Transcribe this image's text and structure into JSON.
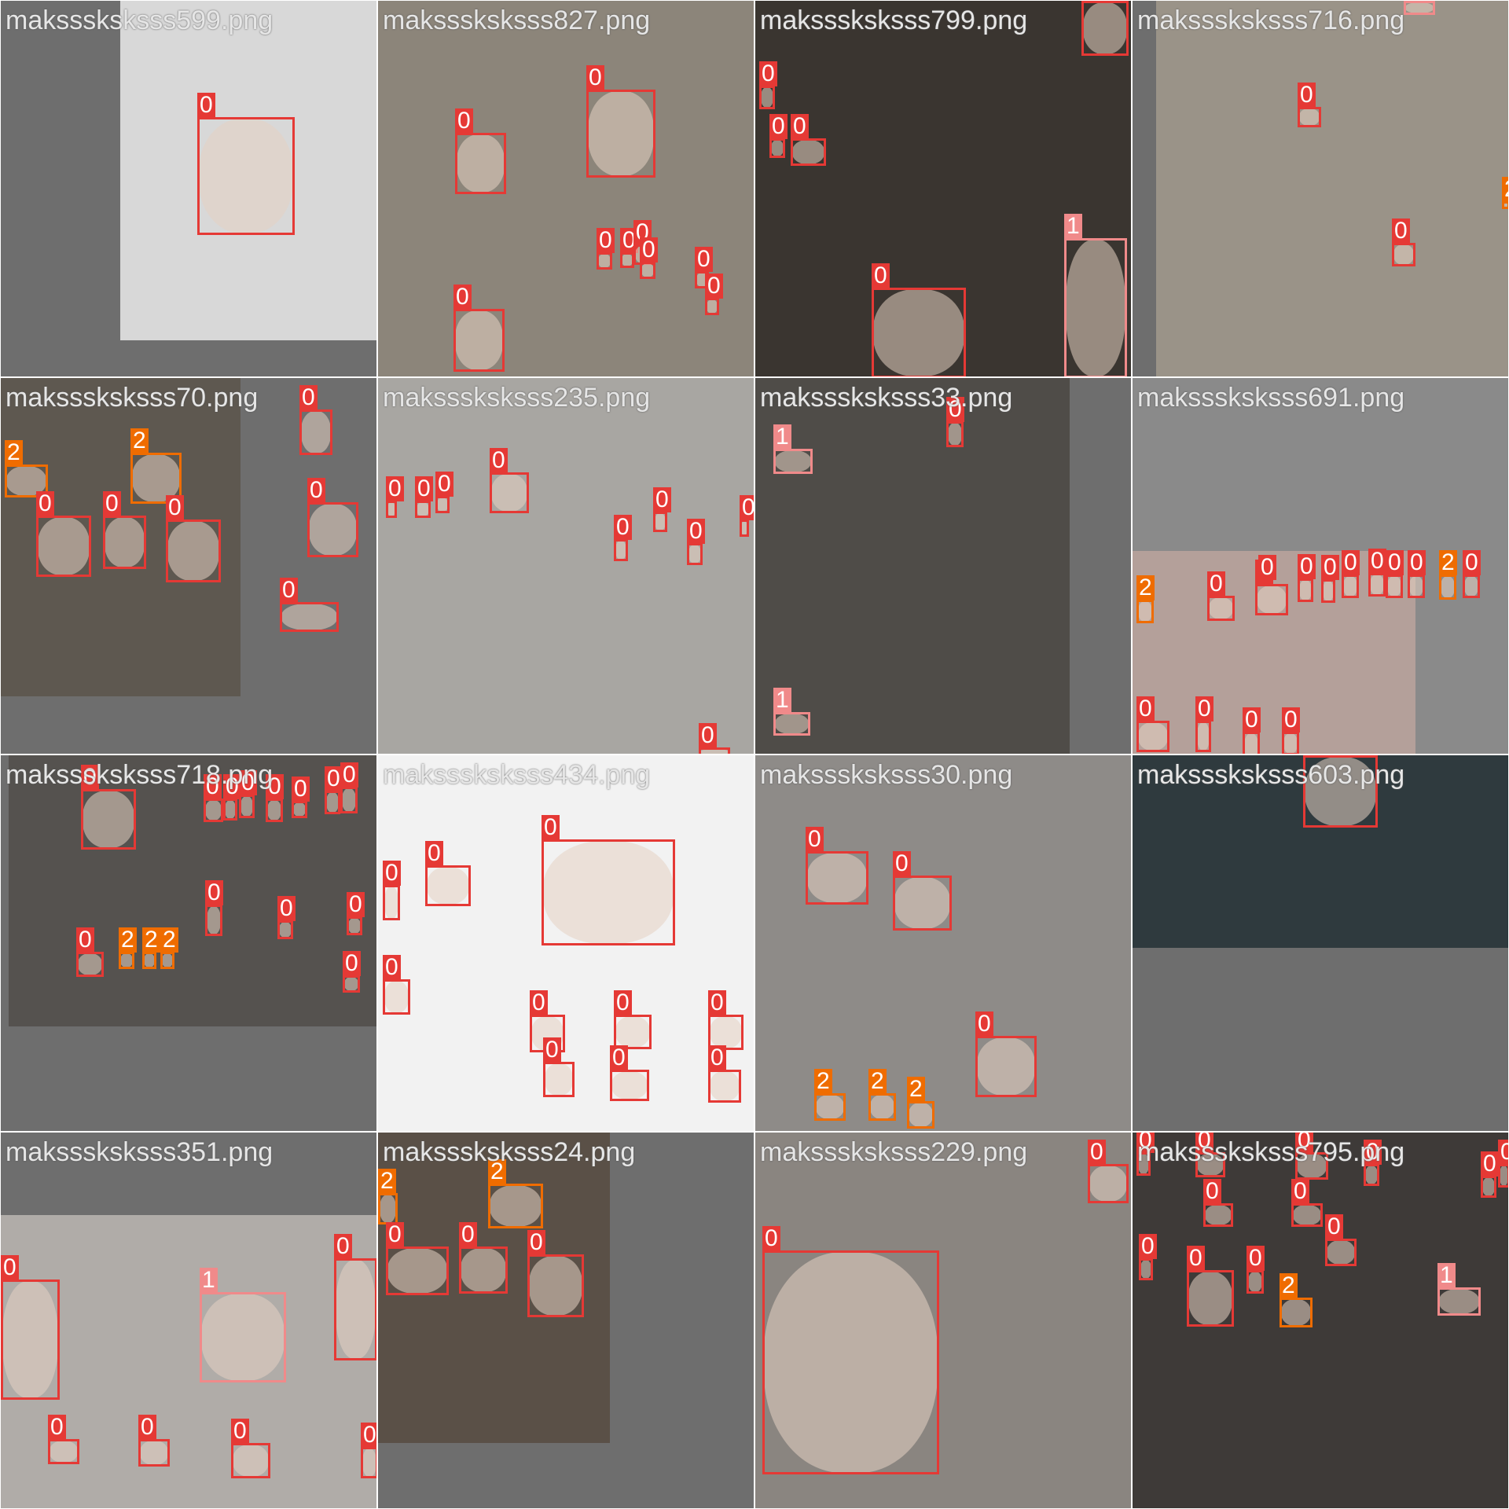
{
  "colors": {
    "class_0": "#e53935",
    "class_1": "#f08a8a",
    "class_2": "#ef6c00"
  },
  "tiles": [
    {
      "filename": "maksssksksss599.png",
      "bg": "#6e6e6e",
      "patches": [
        {
          "bg": "#d8d8d8",
          "shade": "dark"
        }
      ],
      "boxes": [
        {
          "cls": "0"
        }
      ]
    },
    {
      "filename": "maksssksksss827.png",
      "bg": "#6e6e6e",
      "patches": [
        {
          "bg": "#8c857a"
        }
      ],
      "boxes": [
        {
          "cls": "0"
        },
        {
          "cls": "0"
        },
        {
          "cls": "0"
        },
        {
          "cls": "0"
        },
        {
          "cls": "0"
        },
        {
          "cls": "0"
        },
        {
          "cls": "0"
        },
        {
          "cls": "0"
        },
        {
          "cls": "0"
        }
      ]
    },
    {
      "filename": "maksssksksss799.png",
      "bg": "#6e6e6e",
      "patches": [
        {
          "bg": "#3a3530"
        }
      ],
      "boxes": [
        {
          "cls": "0"
        },
        {
          "cls": "0"
        },
        {
          "cls": "0"
        },
        {
          "cls": "0"
        },
        {
          "cls": "0"
        },
        {
          "cls": "1"
        },
        {
          "cls": "0"
        }
      ]
    },
    {
      "filename": "maksssksksss716.png",
      "bg": "#6e6e6e",
      "patches": [
        {
          "bg": "#9a9388"
        }
      ],
      "boxes": [
        {
          "cls": "1"
        },
        {
          "cls": "0"
        },
        {
          "cls": "2"
        },
        {
          "cls": "0"
        }
      ]
    },
    {
      "filename": "maksssksksss70.png",
      "bg": "#6e6e6e",
      "patches": [
        {
          "bg": "#5e5850"
        }
      ],
      "boxes": [
        {
          "cls": "0"
        },
        {
          "cls": "2"
        },
        {
          "cls": "2"
        },
        {
          "cls": "0"
        },
        {
          "cls": "0"
        },
        {
          "cls": "0"
        },
        {
          "cls": "0"
        },
        {
          "cls": "0"
        }
      ]
    },
    {
      "filename": "maksssksksss235.png",
      "bg": "#6e6e6e",
      "patches": [
        {
          "bg": "#a8a6a2"
        }
      ],
      "boxes": [
        {
          "cls": "0"
        },
        {
          "cls": "0"
        },
        {
          "cls": "0"
        },
        {
          "cls": "0"
        },
        {
          "cls": "0"
        },
        {
          "cls": "0"
        },
        {
          "cls": "0"
        },
        {
          "cls": "0"
        },
        {
          "cls": "0"
        }
      ]
    },
    {
      "filename": "maksssksksss33.png",
      "bg": "#6e6e6e",
      "patches": [
        {
          "bg": "#4f4c48"
        }
      ],
      "boxes": [
        {
          "cls": "1"
        },
        {
          "cls": "0"
        },
        {
          "cls": "1"
        }
      ]
    },
    {
      "filename": "maksssksksss691.png",
      "bg": "#8a8a8a",
      "patches": [
        {
          "bg": "#b4a09a"
        }
      ],
      "boxes": [
        {
          "cls": "2"
        },
        {
          "cls": "0"
        },
        {
          "cls": "0"
        },
        {
          "cls": "0"
        },
        {
          "cls": "0"
        },
        {
          "cls": "0"
        },
        {
          "cls": "0"
        },
        {
          "cls": "0"
        },
        {
          "cls": "0"
        },
        {
          "cls": "0"
        },
        {
          "cls": "2"
        },
        {
          "cls": "0"
        },
        {
          "cls": "0"
        },
        {
          "cls": "0"
        },
        {
          "cls": "0"
        },
        {
          "cls": "0"
        }
      ]
    },
    {
      "filename": "maksssksksss718.png",
      "bg": "#6e6e6e",
      "patches": [
        {
          "bg": "#55524f"
        }
      ],
      "boxes": [
        {
          "cls": "0"
        },
        {
          "cls": "0"
        },
        {
          "cls": "0"
        },
        {
          "cls": "0"
        },
        {
          "cls": "0"
        },
        {
          "cls": "0"
        },
        {
          "cls": "0"
        },
        {
          "cls": "0"
        },
        {
          "cls": "2"
        },
        {
          "cls": "2"
        },
        {
          "cls": "2"
        },
        {
          "cls": "0"
        },
        {
          "cls": "0"
        },
        {
          "cls": "0"
        },
        {
          "cls": "0"
        },
        {
          "cls": "0"
        }
      ]
    },
    {
      "filename": "maksssksksss434.png",
      "bg": "#6e6e6e",
      "patches": [
        {
          "bg": "#f2f2f2"
        }
      ],
      "boxes": [
        {
          "cls": "0"
        },
        {
          "cls": "0"
        },
        {
          "cls": "0"
        },
        {
          "cls": "0"
        },
        {
          "cls": "0"
        },
        {
          "cls": "0"
        },
        {
          "cls": "0"
        },
        {
          "cls": "0"
        },
        {
          "cls": "0"
        },
        {
          "cls": "0"
        }
      ]
    },
    {
      "filename": "maksssksksss30.png",
      "bg": "#6e6e6e",
      "patches": [
        {
          "bg": "#8e8b88"
        }
      ],
      "boxes": [
        {
          "cls": "0"
        },
        {
          "cls": "0"
        },
        {
          "cls": "0"
        },
        {
          "cls": "2"
        },
        {
          "cls": "2"
        },
        {
          "cls": "2"
        }
      ]
    },
    {
      "filename": "maksssksksss603.png",
      "bg": "#6e6e6e",
      "patches": [
        {
          "bg": "#2f3a3e"
        }
      ],
      "boxes": [
        {
          "cls": "0"
        }
      ]
    },
    {
      "filename": "maksssksksss351.png",
      "bg": "#6e6e6e",
      "patches": [
        {
          "bg": "#b0aca8"
        }
      ],
      "boxes": [
        {
          "cls": "0"
        },
        {
          "cls": "1"
        },
        {
          "cls": "0"
        },
        {
          "cls": "0"
        },
        {
          "cls": "0"
        },
        {
          "cls": "0"
        },
        {
          "cls": "0"
        }
      ]
    },
    {
      "filename": "maksssksksss24.png",
      "bg": "#6e6e6e",
      "patches": [
        {
          "bg": "#5a5047"
        }
      ],
      "boxes": [
        {
          "cls": "2"
        },
        {
          "cls": "2"
        },
        {
          "cls": "0"
        },
        {
          "cls": "0"
        },
        {
          "cls": "0"
        }
      ]
    },
    {
      "filename": "maksssksksss229.png",
      "bg": "#6e6e6e",
      "patches": [
        {
          "bg": "#8a8580"
        }
      ],
      "boxes": [
        {
          "cls": "0"
        },
        {
          "cls": "0"
        }
      ]
    },
    {
      "filename": "maksssksksss795.png",
      "bg": "#6e6e6e",
      "patches": [
        {
          "bg": "#3e3a38"
        }
      ],
      "boxes": [
        {
          "cls": "0"
        },
        {
          "cls": "0"
        },
        {
          "cls": "0"
        },
        {
          "cls": "0"
        },
        {
          "cls": "0"
        },
        {
          "cls": "0"
        },
        {
          "cls": "0"
        },
        {
          "cls": "0"
        },
        {
          "cls": "0"
        },
        {
          "cls": "0"
        },
        {
          "cls": "0"
        },
        {
          "cls": "2"
        },
        {
          "cls": "1"
        },
        {
          "cls": "0"
        }
      ]
    }
  ]
}
